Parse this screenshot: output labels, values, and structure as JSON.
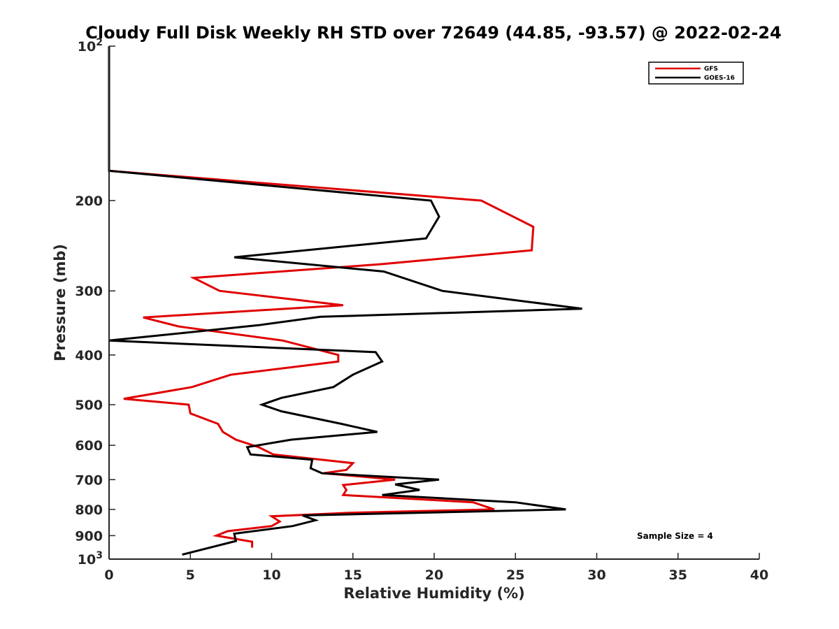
{
  "chart_data": {
    "type": "line",
    "title": "Cloudy Full Disk Weekly RH STD over 72649 (44.85, -93.57) @ 2022-02-24",
    "xlabel": "Relative Humidity (%)",
    "ylabel": "Pressure (mb)",
    "xlim": [
      0,
      40
    ],
    "ylim": [
      100,
      1000
    ],
    "y_scale": "log",
    "y_reversed": true,
    "x_ticks": [
      "0",
      "5",
      "10",
      "15",
      "20",
      "25",
      "30",
      "35",
      "40"
    ],
    "y_ticks": [
      {
        "value": 100,
        "base": "10",
        "exp": "2"
      },
      {
        "value": 200,
        "label": "200"
      },
      {
        "value": 300,
        "label": "300"
      },
      {
        "value": 400,
        "label": "400"
      },
      {
        "value": 500,
        "label": "500"
      },
      {
        "value": 600,
        "label": "600"
      },
      {
        "value": 700,
        "label": "700"
      },
      {
        "value": 800,
        "label": "800"
      },
      {
        "value": 900,
        "label": "900"
      },
      {
        "value": 1000,
        "base": "10",
        "exp": "3"
      }
    ],
    "grid": false,
    "legend_position": "top-right",
    "annotation": "Sample Size = 4",
    "series": [
      {
        "name": "GFS",
        "color": "#e00000",
        "points": [
          [
            0,
            100
          ],
          [
            0,
            175
          ],
          [
            22.9,
            200
          ],
          [
            26.1,
            225
          ],
          [
            26.0,
            250
          ],
          [
            16.8,
            266
          ],
          [
            5.2,
            283
          ],
          [
            6.8,
            300
          ],
          [
            14.4,
            320
          ],
          [
            2.1,
            338
          ],
          [
            4.3,
            352
          ],
          [
            10.7,
            375
          ],
          [
            14.1,
            400
          ],
          [
            14.1,
            412
          ],
          [
            7.5,
            437
          ],
          [
            5.1,
            462
          ],
          [
            0.9,
            487
          ],
          [
            4.9,
            500
          ],
          [
            5.0,
            520
          ],
          [
            6.7,
            545
          ],
          [
            7.0,
            565
          ],
          [
            7.8,
            585
          ],
          [
            9.2,
            605
          ],
          [
            10.1,
            625
          ],
          [
            15.0,
            650
          ],
          [
            14.6,
            670
          ],
          [
            13.2,
            680
          ],
          [
            17.6,
            700
          ],
          [
            14.4,
            717
          ],
          [
            14.6,
            733
          ],
          [
            14.4,
            750
          ],
          [
            22.4,
            775
          ],
          [
            23.7,
            800
          ],
          [
            14.9,
            812
          ],
          [
            10.0,
            825
          ],
          [
            10.5,
            845
          ],
          [
            10.0,
            862
          ],
          [
            7.3,
            882
          ],
          [
            6.6,
            900
          ],
          [
            8.8,
            925
          ],
          [
            8.8,
            950
          ]
        ]
      },
      {
        "name": "GOES-16",
        "color": "#000000",
        "points": [
          [
            0,
            100
          ],
          [
            0,
            175
          ],
          [
            19.8,
            200
          ],
          [
            20.3,
            215
          ],
          [
            19.5,
            237
          ],
          [
            7.7,
            258
          ],
          [
            16.9,
            275
          ],
          [
            20.5,
            300
          ],
          [
            29.1,
            325
          ],
          [
            13.0,
            337
          ],
          [
            9.2,
            350
          ],
          [
            0,
            375
          ],
          [
            16.4,
            395
          ],
          [
            16.8,
            412
          ],
          [
            15.0,
            437
          ],
          [
            13.8,
            462
          ],
          [
            10.6,
            485
          ],
          [
            9.4,
            500
          ],
          [
            10.6,
            515
          ],
          [
            14.3,
            545
          ],
          [
            16.5,
            565
          ],
          [
            11.2,
            585
          ],
          [
            8.5,
            605
          ],
          [
            8.7,
            625
          ],
          [
            12.5,
            640
          ],
          [
            12.4,
            665
          ],
          [
            13.1,
            680
          ],
          [
            20.3,
            700
          ],
          [
            17.6,
            715
          ],
          [
            19.1,
            733
          ],
          [
            16.8,
            750
          ],
          [
            25.0,
            775
          ],
          [
            28.1,
            800
          ],
          [
            11.9,
            822
          ],
          [
            12.7,
            840
          ],
          [
            11.3,
            862
          ],
          [
            7.7,
            892
          ],
          [
            7.8,
            922
          ],
          [
            4.5,
            980
          ]
        ]
      }
    ]
  }
}
